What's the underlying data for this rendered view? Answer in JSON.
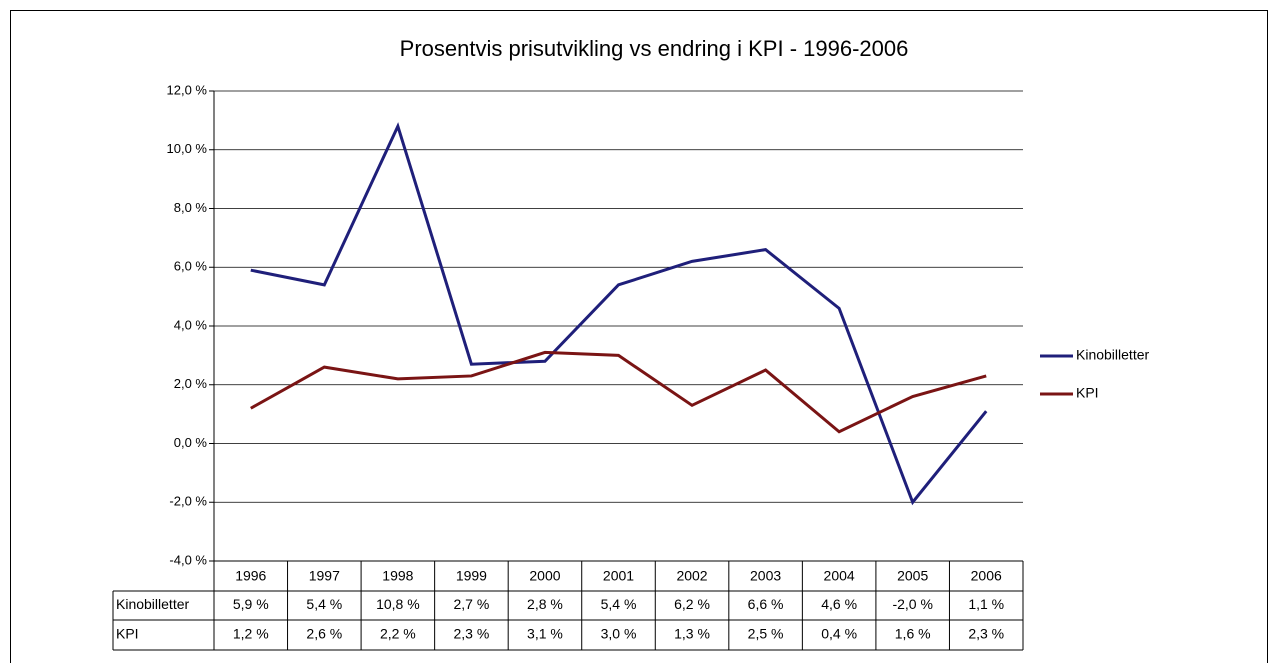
{
  "chart_data": {
    "type": "line",
    "title": "Prosentvis prisutvikling vs endring i KPI - 1996-2006",
    "categories": [
      "1996",
      "1997",
      "1998",
      "1999",
      "2000",
      "2001",
      "2002",
      "2003",
      "2004",
      "2005",
      "2006"
    ],
    "series": [
      {
        "name": "Kinobilletter",
        "color": "#1f1f7a",
        "values": [
          5.9,
          5.4,
          10.8,
          2.7,
          2.8,
          5.4,
          6.2,
          6.6,
          4.6,
          -2.0,
          1.1
        ],
        "value_labels": [
          "5,9 %",
          "5,4 %",
          "10,8 %",
          "2,7 %",
          "2,8 %",
          "5,4 %",
          "6,2 %",
          "6,6 %",
          "4,6 %",
          "-2,0 %",
          "1,1 %"
        ]
      },
      {
        "name": "KPI",
        "color": "#7a1414",
        "values": [
          1.2,
          2.6,
          2.2,
          2.3,
          3.1,
          3.0,
          1.3,
          2.5,
          0.4,
          1.6,
          2.3
        ],
        "value_labels": [
          "1,2 %",
          "2,6 %",
          "2,2 %",
          "2,3 %",
          "3,1 %",
          "3,0 %",
          "1,3 %",
          "2,5 %",
          "0,4 %",
          "1,6 %",
          "2,3 %"
        ]
      }
    ],
    "ylim": [
      -4,
      12
    ],
    "yticks": [
      {
        "value": -4,
        "label": "-4,0 %"
      },
      {
        "value": -2,
        "label": "-2,0 %"
      },
      {
        "value": 0,
        "label": "0,0 %"
      },
      {
        "value": 2,
        "label": "2,0 %"
      },
      {
        "value": 4,
        "label": "4,0 %"
      },
      {
        "value": 6,
        "label": "6,0 %"
      },
      {
        "value": 8,
        "label": "8,0 %"
      },
      {
        "value": 10,
        "label": "10,0 %"
      },
      {
        "value": 12,
        "label": "12,0 %"
      }
    ],
    "grid": true,
    "legend": "right"
  }
}
